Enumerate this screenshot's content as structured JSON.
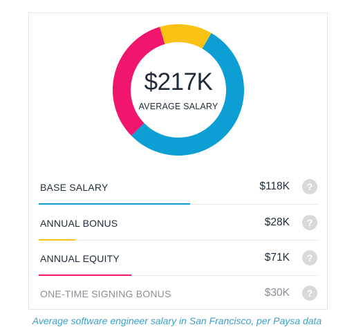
{
  "summary": {
    "amount": "$217K",
    "label": "AVERAGE SALARY"
  },
  "chart_data": {
    "type": "pie",
    "title": "",
    "unit": "$K",
    "total": 217,
    "categories": [
      "BASE SALARY",
      "ANNUAL BONUS",
      "ANNUAL EQUITY"
    ],
    "values": [
      118,
      28,
      71
    ],
    "colors": [
      "#0d9ed4",
      "#fbc216",
      "#f0166e"
    ],
    "extra": {
      "label": "ONE-TIME SIGNING BONUS",
      "value": 30
    }
  },
  "rows": [
    {
      "label": "BASE SALARY",
      "value": "$118K",
      "help": "?",
      "color": "#0d9ed4",
      "share": 0.54
    },
    {
      "label": "ANNUAL BONUS",
      "value": "$28K",
      "help": "?",
      "color": "#fbc216",
      "share": 0.13
    },
    {
      "label": "ANNUAL EQUITY",
      "value": "$71K",
      "help": "?",
      "color": "#f0166e",
      "share": 0.33
    },
    {
      "label": "ONE-TIME SIGNING BONUS",
      "value": "$30K",
      "help": "?",
      "color": "",
      "share": 0
    }
  ],
  "caption": "Average software engineer salary in San Francisco, per Paysa data"
}
